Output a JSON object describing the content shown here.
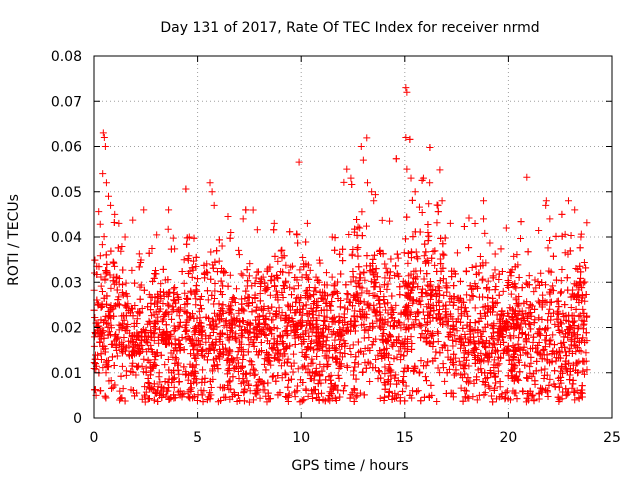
{
  "chart_data": {
    "type": "scatter",
    "title": "Day 131 of 2017, Rate Of TEC Index for receiver nrmd",
    "xlabel": "GPS time / hours",
    "ylabel": "ROTI / TECUs",
    "xlim": [
      0,
      25
    ],
    "ylim": [
      0,
      0.08
    ],
    "x_ticks": [
      0,
      5,
      10,
      15,
      20,
      25
    ],
    "x_tick_labels": [
      "0",
      "5",
      "10",
      "15",
      "20",
      "25"
    ],
    "y_ticks": [
      0,
      0.01,
      0.02,
      0.03,
      0.04,
      0.05,
      0.06,
      0.07,
      0.08
    ],
    "y_tick_labels": [
      "0",
      "0.01",
      "0.02",
      "0.03",
      "0.04",
      "0.05",
      "0.06",
      "0.07",
      "0.08"
    ],
    "grid": true,
    "marker": "plus",
    "color": "#ff0000",
    "x_range_covered": [
      0.0,
      23.8
    ],
    "core_band": [
      0.01,
      0.025
    ],
    "series": [
      {
        "points": [
          [
            0.45,
            0.063
          ],
          [
            0.5,
            0.062
          ],
          [
            0.55,
            0.06
          ],
          [
            0.42,
            0.054
          ],
          [
            0.6,
            0.052
          ],
          [
            0.7,
            0.049
          ],
          [
            0.8,
            0.047
          ],
          [
            1.0,
            0.045
          ],
          [
            1.2,
            0.043
          ],
          [
            1.5,
            0.04
          ],
          [
            2.4,
            0.046
          ],
          [
            3.6,
            0.046
          ],
          [
            4.6,
            0.04
          ],
          [
            5.6,
            0.052
          ],
          [
            5.7,
            0.05
          ],
          [
            5.8,
            0.047
          ],
          [
            6.6,
            0.041
          ],
          [
            7.2,
            0.044
          ],
          [
            8.7,
            0.043
          ],
          [
            10.3,
            0.043
          ],
          [
            11.5,
            0.04
          ],
          [
            12.2,
            0.055
          ],
          [
            12.4,
            0.053
          ],
          [
            12.9,
            0.06
          ],
          [
            13.0,
            0.057
          ],
          [
            13.2,
            0.052
          ],
          [
            13.4,
            0.05
          ],
          [
            13.5,
            0.048
          ],
          [
            15.05,
            0.073
          ],
          [
            15.1,
            0.072
          ],
          [
            15.05,
            0.062
          ],
          [
            15.1,
            0.055
          ],
          [
            15.3,
            0.053
          ],
          [
            15.5,
            0.05
          ],
          [
            15.9,
            0.053
          ],
          [
            16.2,
            0.052
          ],
          [
            16.6,
            0.047
          ],
          [
            16.8,
            0.048
          ],
          [
            17.2,
            0.043
          ],
          [
            18.8,
            0.048
          ],
          [
            18.8,
            0.044
          ],
          [
            19.9,
            0.042
          ],
          [
            21.8,
            0.047
          ],
          [
            22.0,
            0.044
          ],
          [
            22.9,
            0.048
          ],
          [
            23.2,
            0.046
          ],
          [
            23.5,
            0.04
          ],
          [
            7.5,
            0.0035
          ],
          [
            7.7,
            0.004
          ],
          [
            18.5,
            0.004
          ],
          [
            18.6,
            0.005
          ],
          [
            20.1,
            0.004
          ],
          [
            23.2,
            0.004
          ],
          [
            23.4,
            0.0045
          ],
          [
            16.3,
            0.005
          ],
          [
            9.4,
            0.005
          ],
          [
            3.2,
            0.0055
          ],
          [
            12.7,
            0.005
          ],
          [
            0.1,
            0.005
          ],
          [
            0.3,
            0.006
          ]
        ]
      }
    ]
  }
}
